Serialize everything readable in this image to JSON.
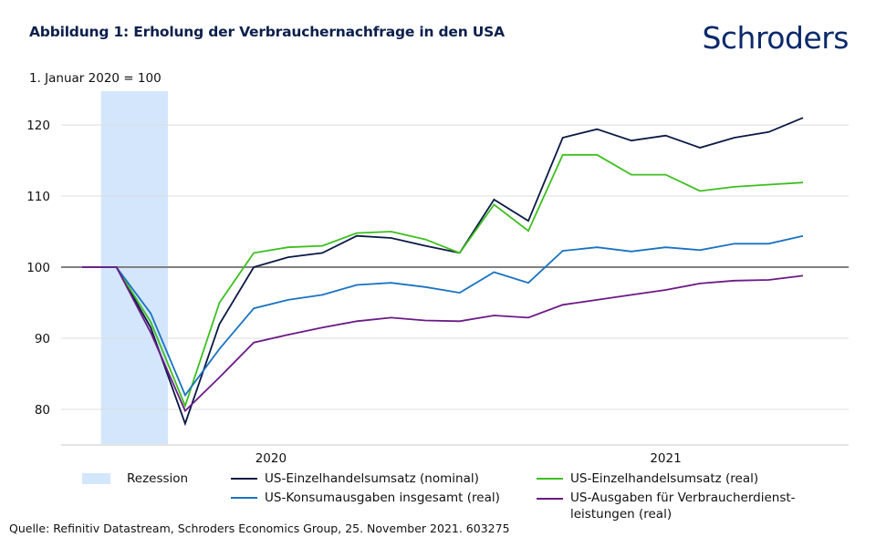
{
  "header": {
    "title": "Abbildung 1: Erholung der Verbrauchernachfrage in den USA",
    "logo": "Schroders",
    "subtitle": "1. Januar 2020 = 100"
  },
  "chart_data": {
    "type": "line",
    "title": "Abbildung 1: Erholung der Verbrauchernachfrage in den USA",
    "ylabel": "1. Januar 2020 = 100",
    "xlabel": "",
    "ylim": [
      75,
      123
    ],
    "yticks": [
      80,
      90,
      100,
      110,
      120
    ],
    "baseline": 100,
    "grid": true,
    "x_labels": [
      {
        "label": "2020",
        "index": 5.5
      },
      {
        "label": "2021",
        "index": 17
      }
    ],
    "n_points": 22,
    "recession": {
      "label": "Rezession",
      "start_index": 0.55,
      "end_index": 2.5,
      "color": "#d4e6fb"
    },
    "series": [
      {
        "name": "US-Einzelhandelsumsatz (nominal)",
        "color": "#0b1a45",
        "values": [
          100,
          100,
          91.5,
          78,
          92,
          100,
          101.4,
          102,
          104.4,
          104.1,
          103,
          102,
          109.5,
          106.5,
          118.2,
          119.4,
          117.8,
          118.5,
          116.8,
          118.2,
          119,
          121
        ]
      },
      {
        "name": "US-Einzelhandelsumsatz (real)",
        "color": "#3cbf1e",
        "values": [
          100,
          100,
          92.3,
          80.5,
          95,
          102,
          102.8,
          103,
          104.8,
          105,
          103.9,
          102,
          108.8,
          105.1,
          115.8,
          115.8,
          113,
          113,
          110.7,
          111.3,
          111.6,
          111.9
        ]
      },
      {
        "name": "US-Konsumausgaben insgesamt (real)",
        "color": "#1a73c2",
        "values": [
          100,
          100,
          93.5,
          82,
          88.5,
          94.2,
          95.4,
          96.1,
          97.5,
          97.8,
          97.2,
          96.4,
          99.3,
          97.8,
          102.3,
          102.8,
          102.2,
          102.8,
          102.4,
          103.3,
          103.3,
          104.4
        ]
      },
      {
        "name": "US-Ausgaben für Verbraucherdienstleistungen (real)",
        "color": "#6b1a86",
        "values": [
          100,
          100,
          90.8,
          79.8,
          84.5,
          89.4,
          90.5,
          91.5,
          92.4,
          92.9,
          92.5,
          92.4,
          93.2,
          92.9,
          94.7,
          95.4,
          96.1,
          96.8,
          97.7,
          98.1,
          98.2,
          98.8
        ]
      }
    ]
  },
  "legend": {
    "recession": "Rezession",
    "items": [
      {
        "label": "US-Einzelhandelsumsatz (nominal)",
        "color": "#0b1a45"
      },
      {
        "label": "US-Einzelhandelsumsatz (real)",
        "color": "#3cbf1e"
      },
      {
        "label": "US-Konsumausgaben insgesamt (real)",
        "color": "#1a73c2"
      },
      {
        "label_line1": "US-Ausgaben für Verbraucherdienst-",
        "label_line2": "leistungen (real)",
        "color": "#6b1a86"
      }
    ]
  },
  "footer": {
    "source": "Quelle: Refinitiv Datastream, Schroders Economics Group, 25. November 2021. 603275"
  }
}
